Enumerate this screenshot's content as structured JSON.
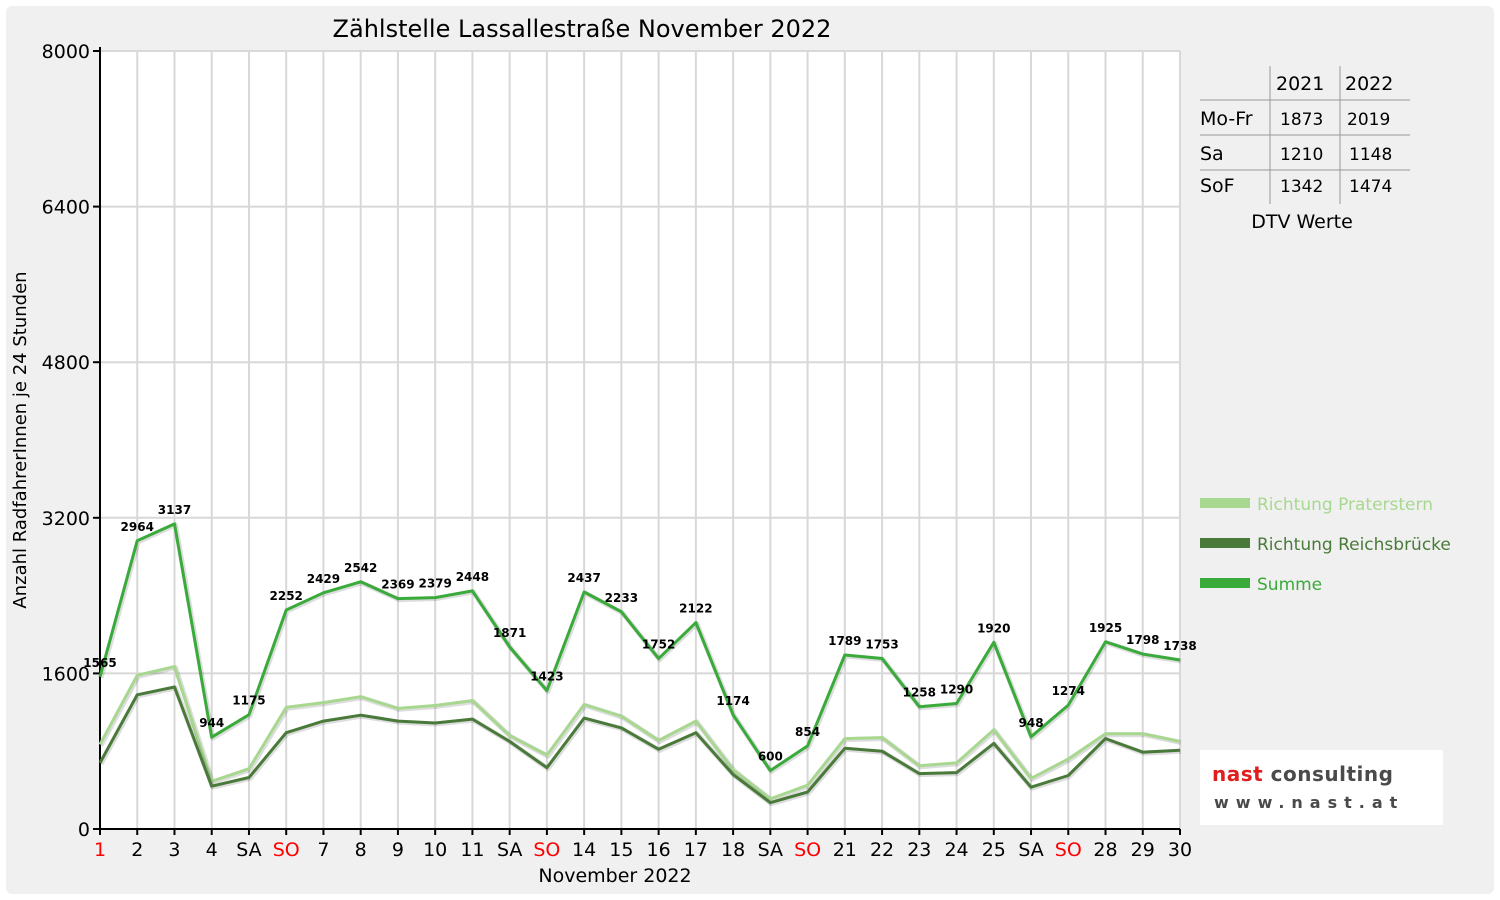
{
  "chart_data": {
    "type": "line",
    "title": "Zählstelle Lassallestraße November 2022",
    "xlabel": "November 2022",
    "ylabel": "Anzahl RadfahrerInnen je 24 Stunden",
    "ylim": [
      0,
      8000
    ],
    "yticks": [
      "0",
      "1600",
      "3200",
      "4800",
      "6400",
      "8000"
    ],
    "grid": true,
    "legend_position": "right",
    "categories": [
      "1",
      "2",
      "3",
      "4",
      "SA",
      "SO",
      "7",
      "8",
      "9",
      "10",
      "11",
      "SA",
      "SO",
      "14",
      "15",
      "16",
      "17",
      "18",
      "SA",
      "SO",
      "21",
      "22",
      "23",
      "24",
      "25",
      "SA",
      "SO",
      "28",
      "29",
      "30"
    ],
    "red_categories": [
      0,
      5,
      12,
      19,
      26
    ],
    "series": [
      {
        "name": "Richtung Praterstern",
        "color": "#a8d890",
        "values": [
          870,
          1580,
          1670,
          490,
          620,
          1250,
          1300,
          1360,
          1240,
          1270,
          1320,
          960,
          760,
          1280,
          1160,
          910,
          1110,
          610,
          310,
          450,
          930,
          940,
          650,
          680,
          1020,
          520,
          720,
          980,
          980,
          900
        ]
      },
      {
        "name": "Richtung Reichsbrücke",
        "color": "#4a7a3a",
        "values": [
          680,
          1380,
          1460,
          440,
          530,
          990,
          1110,
          1170,
          1110,
          1090,
          1130,
          900,
          630,
          1140,
          1040,
          820,
          990,
          560,
          270,
          380,
          830,
          800,
          570,
          580,
          880,
          430,
          550,
          930,
          790,
          810
        ]
      },
      {
        "name": "Summe",
        "color": "#3aaa3a",
        "values": [
          1565,
          2964,
          3137,
          944,
          1175,
          2252,
          2429,
          2542,
          2369,
          2379,
          2448,
          1871,
          1423,
          2437,
          2233,
          1752,
          2122,
          1174,
          600,
          854,
          1789,
          1753,
          1258,
          1290,
          1920,
          948,
          1274,
          1925,
          1798,
          1738
        ]
      }
    ],
    "data_labels": [
      "1565",
      "2964",
      "3137",
      "944",
      "1175",
      "2252",
      "2429",
      "2542",
      "2369",
      "2379",
      "2448",
      "1871",
      "1423",
      "2437",
      "2233",
      "1752",
      "2122",
      "1174",
      "600",
      "854",
      "1789",
      "1753",
      "1258",
      "1290",
      "1920",
      "948",
      "1274",
      "1925",
      "1798",
      "1738"
    ]
  },
  "dtv_table": {
    "headers": [
      "",
      "2021",
      "2022"
    ],
    "rows": [
      {
        "label": "Mo-Fr",
        "v2021": "1873",
        "v2022": "2019"
      },
      {
        "label": "Sa",
        "v2021": "1210",
        "v2022": "1148"
      },
      {
        "label": "SoF",
        "v2021": "1342",
        "v2022": "1474"
      }
    ],
    "caption": "DTV Werte"
  },
  "logo": {
    "name_part1": "nast",
    "name_part2": " consulting",
    "url": "www.nast.at"
  },
  "colors": {
    "grid": "#d8d8d8",
    "axis": "#000000",
    "weekend_label": "#ff0000"
  }
}
